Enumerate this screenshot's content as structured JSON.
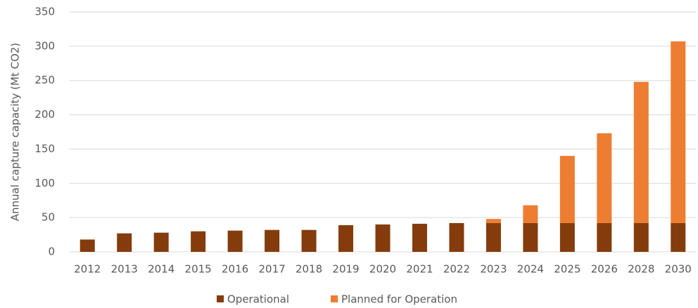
{
  "chart_data": {
    "type": "stacked_bar",
    "y_label": "Annual capture capacity (Mt CO2)",
    "categories": [
      "2012",
      "2013",
      "2014",
      "2015",
      "2016",
      "2017",
      "2018",
      "2019",
      "2020",
      "2021",
      "2022",
      "2023",
      "2024",
      "2025",
      "2026",
      "2028",
      "2030"
    ],
    "series": [
      {
        "name": "Operational",
        "color": "#843c0c",
        "values": [
          18,
          27,
          28,
          30,
          31,
          32,
          32,
          39,
          40,
          41,
          42,
          42,
          42,
          42,
          42,
          42,
          42
        ]
      },
      {
        "name": "Planned for Operation",
        "color": "#ed7d31",
        "values": [
          0,
          0,
          0,
          0,
          0,
          0,
          0,
          0,
          0,
          0,
          0,
          6,
          26,
          98,
          131,
          206,
          265
        ]
      }
    ],
    "ylim": [
      0,
      350
    ],
    "yticks": [
      0,
      50,
      100,
      150,
      200,
      250,
      300,
      350
    ],
    "grid": true,
    "legend": "bottom"
  }
}
